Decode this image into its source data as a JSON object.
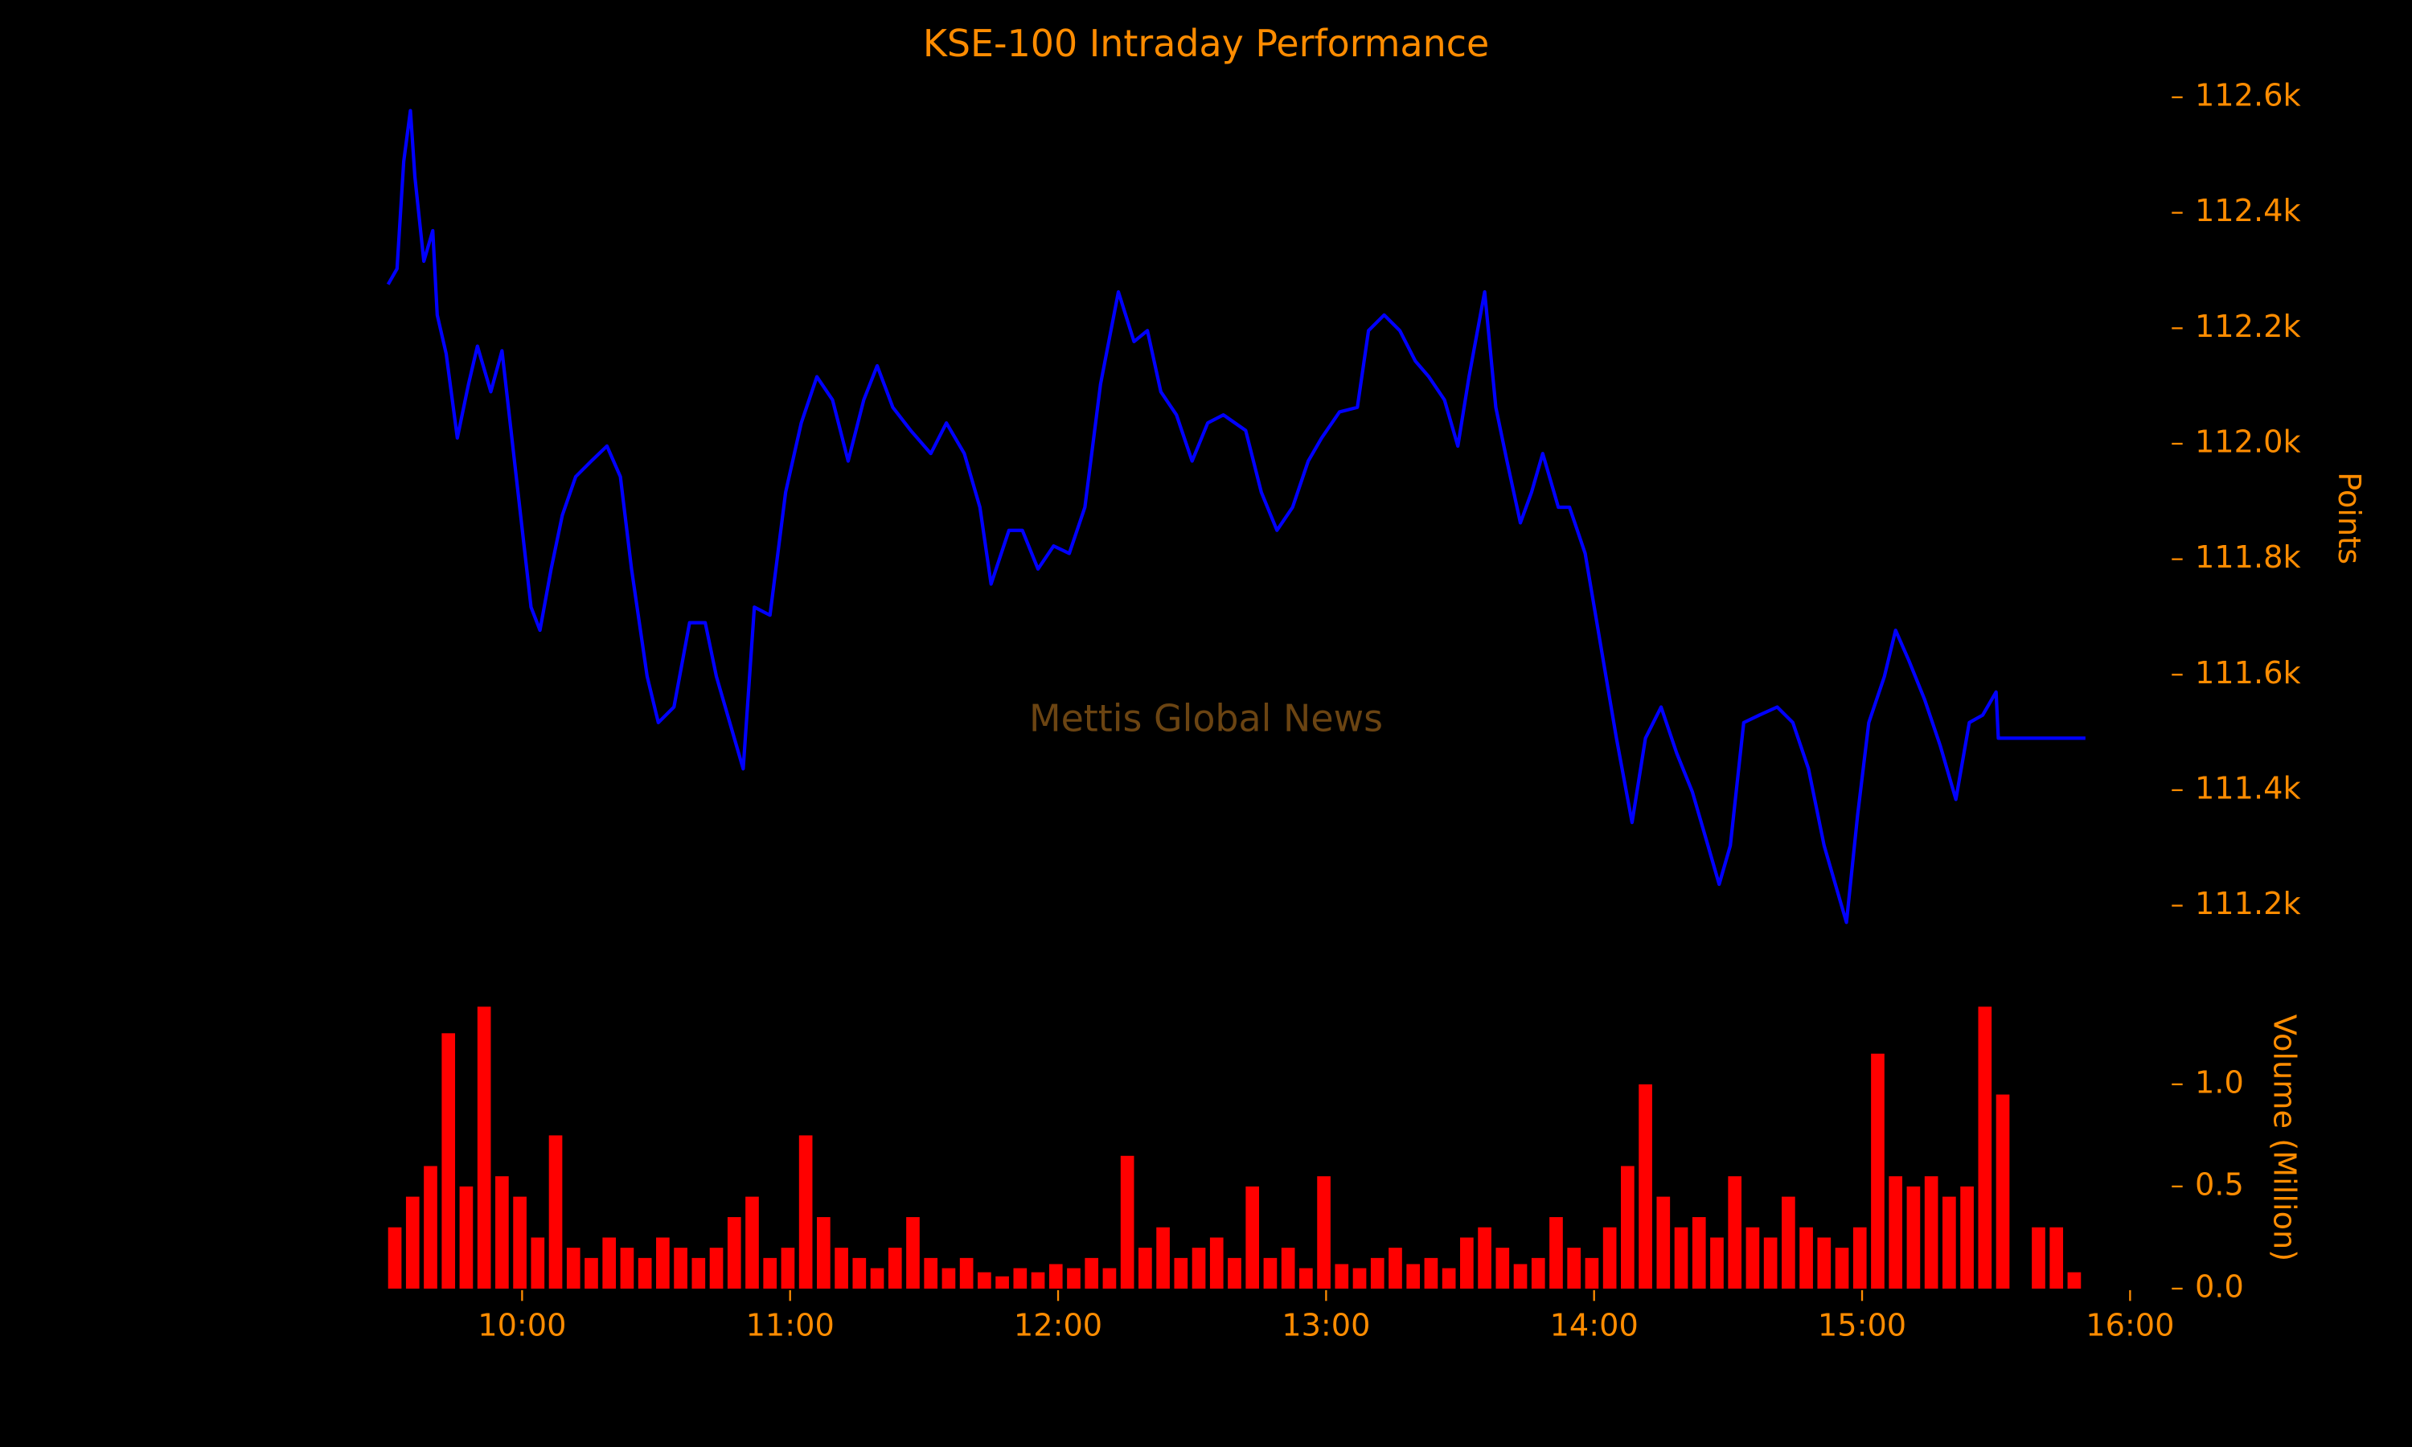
{
  "chart_data": [
    {
      "type": "line",
      "title": "KSE-100 Intraday Performance",
      "y_label": "Points",
      "annotation": "Mettis Global News",
      "color": "#0000ff",
      "x": [
        570,
        572,
        573.5,
        575,
        576,
        578,
        580,
        581,
        583,
        585.5,
        588,
        590,
        593,
        595.5,
        598.5,
        602,
        604,
        606.5,
        609,
        612,
        615.5,
        619,
        622,
        624.5,
        628,
        630.5,
        634,
        637.5,
        641,
        643.5,
        646.5,
        649.5,
        652,
        655.5,
        659,
        662.5,
        666,
        669.5,
        673,
        676.5,
        679.5,
        683,
        687,
        691.5,
        695,
        699,
        702.5,
        705,
        709,
        712,
        715.5,
        719,
        722.5,
        726,
        729.5,
        733.5,
        737,
        740,
        743,
        746.5,
        750,
        753.5,
        757,
        762,
        765.5,
        769,
        772.5,
        776,
        779,
        783,
        787,
        789.5,
        793,
        796.5,
        800,
        803,
        806.5,
        809.5,
        812,
        815.5,
        818,
        820.5,
        823.5,
        826,
        828.5,
        832,
        834.5,
        838,
        841.5,
        845,
        848.5,
        851.5,
        855,
        858.5,
        862,
        865.5,
        868,
        870.5,
        873.5,
        877,
        881,
        884.5,
        888,
        891.5,
        894.5,
        896.5,
        899,
        901.5,
        905,
        907.5,
        910.5,
        914,
        917.5,
        921,
        924,
        927,
        930,
        930.5,
        950
      ],
      "values": [
        112276,
        112303,
        112489,
        112577,
        112462,
        112316,
        112369,
        112223,
        112156,
        112010,
        112103,
        112169,
        112090,
        112161,
        111956,
        111717,
        111677,
        111783,
        111876,
        111943,
        111970,
        111996,
        111943,
        111783,
        111597,
        111517,
        111544,
        111690,
        111690,
        111597,
        111517,
        111437,
        111717,
        111703,
        111916,
        112036,
        112116,
        112076,
        111970,
        112076,
        112135,
        112063,
        112023,
        111983,
        112036,
        111983,
        111890,
        111757,
        111850,
        111850,
        111783,
        111823,
        111810,
        111890,
        112103,
        112263,
        112177,
        112196,
        112090,
        112050,
        111970,
        112036,
        112050,
        112023,
        111916,
        111850,
        111890,
        111970,
        112010,
        112055,
        112063,
        112196,
        112223,
        112196,
        112143,
        112116,
        112076,
        111996,
        112116,
        112263,
        112063,
        111970,
        111863,
        111916,
        111983,
        111890,
        111890,
        111810,
        111650,
        111490,
        111344,
        111490,
        111544,
        111464,
        111397,
        111304,
        111237,
        111304,
        111517,
        111530,
        111544,
        111517,
        111437,
        111304,
        111224,
        111171,
        111357,
        111517,
        111597,
        111677,
        111624,
        111557,
        111477,
        111384,
        111517,
        111530,
        111570,
        111490,
        111490
      ],
      "xlim": [
        551,
        969
      ],
      "ylim": [
        111100,
        112650
      ],
      "yticks": [
        {
          "value": 111200,
          "label": "111.2k"
        },
        {
          "value": 111400,
          "label": "111.4k"
        },
        {
          "value": 111600,
          "label": "111.6k"
        },
        {
          "value": 111800,
          "label": "111.8k"
        },
        {
          "value": 112000,
          "label": "112.0k"
        },
        {
          "value": 112200,
          "label": "112.2k"
        },
        {
          "value": 112400,
          "label": "112.4k"
        },
        {
          "value": 112600,
          "label": "112.6k"
        }
      ]
    },
    {
      "type": "bar",
      "y_label": "Volume (Million)",
      "color": "#ff0000",
      "x": [
        570,
        574,
        578,
        582,
        586,
        590,
        594,
        598,
        602,
        606,
        610,
        614,
        618,
        622,
        626,
        630,
        634,
        638,
        642,
        646,
        650,
        654,
        658,
        662,
        666,
        670,
        674,
        678,
        682,
        686,
        690,
        694,
        698,
        702,
        706,
        710,
        714,
        718,
        722,
        726,
        730,
        734,
        738,
        742,
        746,
        750,
        754,
        758,
        762,
        766,
        770,
        774,
        778,
        782,
        786,
        790,
        794,
        798,
        802,
        806,
        810,
        814,
        818,
        822,
        826,
        830,
        834,
        838,
        842,
        846,
        850,
        854,
        858,
        862,
        866,
        870,
        874,
        878,
        882,
        886,
        890,
        894,
        898,
        902,
        906,
        910,
        914,
        918,
        922,
        926,
        930,
        938,
        942,
        946
      ],
      "values": [
        0.3,
        0.45,
        0.6,
        1.25,
        0.5,
        1.38,
        0.55,
        0.45,
        0.25,
        0.75,
        0.2,
        0.15,
        0.25,
        0.2,
        0.15,
        0.25,
        0.2,
        0.15,
        0.2,
        0.35,
        0.45,
        0.15,
        0.2,
        0.75,
        0.35,
        0.2,
        0.15,
        0.1,
        0.2,
        0.35,
        0.15,
        0.1,
        0.15,
        0.08,
        0.06,
        0.1,
        0.08,
        0.12,
        0.1,
        0.15,
        0.1,
        0.65,
        0.2,
        0.3,
        0.15,
        0.2,
        0.25,
        0.15,
        0.5,
        0.15,
        0.2,
        0.1,
        0.55,
        0.12,
        0.1,
        0.15,
        0.2,
        0.12,
        0.15,
        0.1,
        0.25,
        0.3,
        0.2,
        0.12,
        0.15,
        0.35,
        0.2,
        0.15,
        0.3,
        0.6,
        1.0,
        0.45,
        0.3,
        0.35,
        0.25,
        0.55,
        0.3,
        0.25,
        0.45,
        0.3,
        0.25,
        0.2,
        0.3,
        1.15,
        0.55,
        0.5,
        0.55,
        0.45,
        0.5,
        1.38,
        0.95,
        0.3,
        0.3,
        0.08
      ],
      "xlim": [
        551,
        969
      ],
      "xticks": [
        {
          "value": 600,
          "label": "10:00"
        },
        {
          "value": 660,
          "label": "11:00"
        },
        {
          "value": 720,
          "label": "12:00"
        },
        {
          "value": 780,
          "label": "13:00"
        },
        {
          "value": 840,
          "label": "14:00"
        },
        {
          "value": 900,
          "label": "15:00"
        },
        {
          "value": 960,
          "label": "16:00"
        }
      ],
      "ylim": [
        0,
        1.4
      ],
      "yticks": [
        {
          "value": 0,
          "label": "0.0"
        },
        {
          "value": 0.5,
          "label": "0.5"
        },
        {
          "value": 1.0,
          "label": "1.0"
        }
      ]
    }
  ]
}
